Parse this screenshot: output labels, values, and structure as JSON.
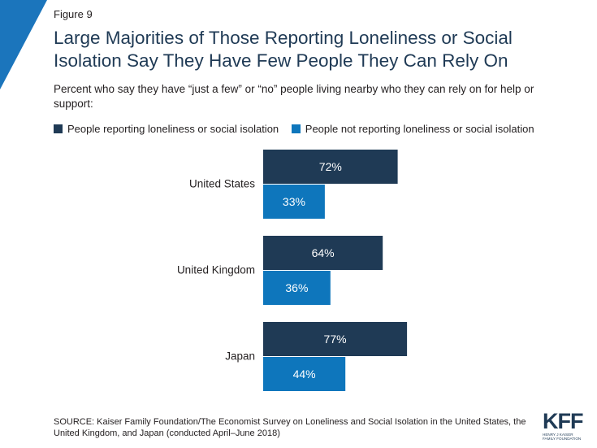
{
  "figure_label": "Figure 9",
  "title": "Large Majorities of Those Reporting Loneliness or Social Isolation Say They Have Few People They Can Rely On",
  "subtitle": "Percent who say they have “just a few” or “no” people living nearby who they can rely on for help or support:",
  "source": "SOURCE: Kaiser Family Foundation/The Economist Survey on Loneliness and Social Isolation in the United States, the United Kingdom, and Japan (conducted April–June 2018)",
  "logo": {
    "mark": "KFF",
    "line1": "HENRY J KAISER",
    "line2": "FAMILY FOUNDATION"
  },
  "colors": {
    "accent": "#1b75bc",
    "dark_navy": "#1f3a55",
    "bar_light": "#0e76bc"
  },
  "chart_data": {
    "type": "bar",
    "orientation": "horizontal",
    "categories": [
      "United States",
      "United Kingdom",
      "Japan"
    ],
    "series": [
      {
        "name": "People reporting loneliness or social isolation",
        "values": [
          72,
          64,
          77
        ],
        "labels": [
          "72%",
          "64%",
          "77%"
        ],
        "color": "#1f3a55"
      },
      {
        "name": "People not reporting loneliness or social isolation",
        "values": [
          33,
          36,
          44
        ],
        "labels": [
          "33%",
          "36%",
          "44%"
        ],
        "color": "#0e76bc"
      }
    ],
    "xlim": [
      0,
      100
    ],
    "legend_position": "top",
    "grid": false
  }
}
